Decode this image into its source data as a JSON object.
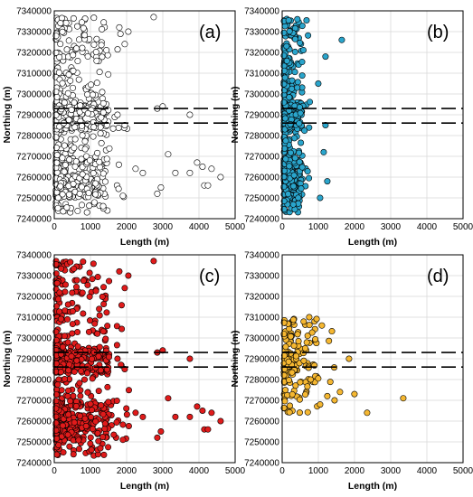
{
  "chart_data": [
    {
      "type": "scatter",
      "panel_label": "(a)",
      "xlabel": "Length (m)",
      "ylabel": "Northing (m)",
      "xlim": [
        0,
        5000
      ],
      "ylim": [
        7240000,
        7340000
      ],
      "grid": true,
      "xticks": [
        "0",
        "1000",
        "2000",
        "3000",
        "4000",
        "5000"
      ],
      "yticks": [
        "7240000",
        "7250000",
        "7260000",
        "7270000",
        "7280000",
        "7290000",
        "7300000",
        "7310000",
        "7320000",
        "7330000",
        "7340000"
      ],
      "reference_lines": [
        7293000,
        7286000
      ],
      "marker": {
        "fill": "#ffffff",
        "edge": "#000000"
      },
      "n_points": 700,
      "max_length": 4600,
      "outliers": [
        [
          2700,
          7337000
        ],
        [
          2950,
          7294000
        ],
        [
          2800,
          7293000
        ],
        [
          3700,
          7290000
        ],
        [
          3100,
          7271000
        ],
        [
          3900,
          7267000
        ],
        [
          3700,
          7262000
        ],
        [
          3300,
          7262000
        ],
        [
          4050,
          7265000
        ],
        [
          4300,
          7264000
        ],
        [
          4550,
          7260000
        ],
        [
          4100,
          7256000
        ],
        [
          4200,
          7256000
        ],
        [
          2900,
          7255000
        ],
        [
          2800,
          7252000
        ],
        [
          2400,
          7262000
        ],
        [
          2200,
          7264000
        ],
        [
          1850,
          7251000
        ],
        [
          1900,
          7285000
        ],
        [
          1700,
          7290000
        ],
        [
          1900,
          7324000
        ],
        [
          1750,
          7332000
        ],
        [
          2000,
          7330000
        ]
      ]
    },
    {
      "type": "scatter",
      "panel_label": "(b)",
      "xlabel": "Length (m)",
      "ylabel": "Northing (m)",
      "xlim": [
        0,
        5000
      ],
      "ylim": [
        7240000,
        7340000
      ],
      "grid": true,
      "xticks": [
        "0",
        "1000",
        "2000",
        "3000",
        "4000",
        "5000"
      ],
      "yticks": [
        "7240000",
        "7250000",
        "7260000",
        "7270000",
        "7280000",
        "7290000",
        "7300000",
        "7310000",
        "7320000",
        "7330000",
        "7340000"
      ],
      "reference_lines": [
        7293000,
        7286000
      ],
      "marker": {
        "fill": "#2aa5cc",
        "edge": "#000000"
      },
      "n_points": 500,
      "max_length": 1600,
      "outliers": [
        [
          1600,
          7326000
        ],
        [
          1150,
          7318000
        ],
        [
          950,
          7305000
        ],
        [
          1150,
          7285000
        ],
        [
          1000,
          7250000
        ],
        [
          1200,
          7258000
        ],
        [
          1100,
          7272000
        ]
      ]
    },
    {
      "type": "scatter",
      "panel_label": "(c)",
      "xlabel": "Length (m)",
      "ylabel": "Northing (m)",
      "xlim": [
        0,
        5000
      ],
      "ylim": [
        7240000,
        7340000
      ],
      "grid": true,
      "xticks": [
        "0",
        "1000",
        "2000",
        "3000",
        "4000",
        "5000"
      ],
      "yticks": [
        "7240000",
        "7250000",
        "7260000",
        "7270000",
        "7280000",
        "7290000",
        "7300000",
        "7310000",
        "7320000",
        "7330000",
        "7340000"
      ],
      "reference_lines": [
        7293000,
        7286000
      ],
      "marker": {
        "fill": "#e01b1b",
        "edge": "#000000"
      },
      "n_points": 700,
      "max_length": 4600,
      "outliers": [
        [
          2700,
          7337000
        ],
        [
          2950,
          7294000
        ],
        [
          2800,
          7293000
        ],
        [
          3700,
          7290000
        ],
        [
          3100,
          7271000
        ],
        [
          3900,
          7267000
        ],
        [
          3700,
          7262000
        ],
        [
          3300,
          7262000
        ],
        [
          4050,
          7265000
        ],
        [
          4300,
          7264000
        ],
        [
          4550,
          7260000
        ],
        [
          4100,
          7256000
        ],
        [
          4200,
          7256000
        ],
        [
          2900,
          7255000
        ],
        [
          2800,
          7252000
        ],
        [
          2400,
          7262000
        ],
        [
          2200,
          7264000
        ],
        [
          1850,
          7251000
        ],
        [
          1900,
          7285000
        ],
        [
          1700,
          7290000
        ],
        [
          1900,
          7324000
        ],
        [
          1750,
          7332000
        ],
        [
          2000,
          7330000
        ]
      ]
    },
    {
      "type": "scatter",
      "panel_label": "(d)",
      "xlabel": "Length (m)",
      "ylabel": "Northing (m)",
      "xlim": [
        0,
        5000
      ],
      "ylim": [
        7240000,
        7340000
      ],
      "grid": true,
      "xticks": [
        "0",
        "1000",
        "2000",
        "3000",
        "4000",
        "5000"
      ],
      "yticks": [
        "7240000",
        "7250000",
        "7260000",
        "7270000",
        "7280000",
        "7290000",
        "7300000",
        "7310000",
        "7320000",
        "7330000",
        "7340000"
      ],
      "reference_lines": [
        7293000,
        7286000
      ],
      "marker": {
        "fill": "#f5b731",
        "edge": "#000000"
      },
      "n_points": 160,
      "max_length": 3300,
      "y_range": [
        7264000,
        7310000
      ],
      "outliers": [
        [
          3300,
          7271000
        ],
        [
          2300,
          7264000
        ],
        [
          1950,
          7273000
        ],
        [
          1800,
          7290000
        ],
        [
          1550,
          7274000
        ],
        [
          1400,
          7270000
        ],
        [
          1200,
          7272000
        ],
        [
          1000,
          7268000
        ],
        [
          1050,
          7306000
        ],
        [
          700,
          7310000
        ]
      ]
    }
  ]
}
